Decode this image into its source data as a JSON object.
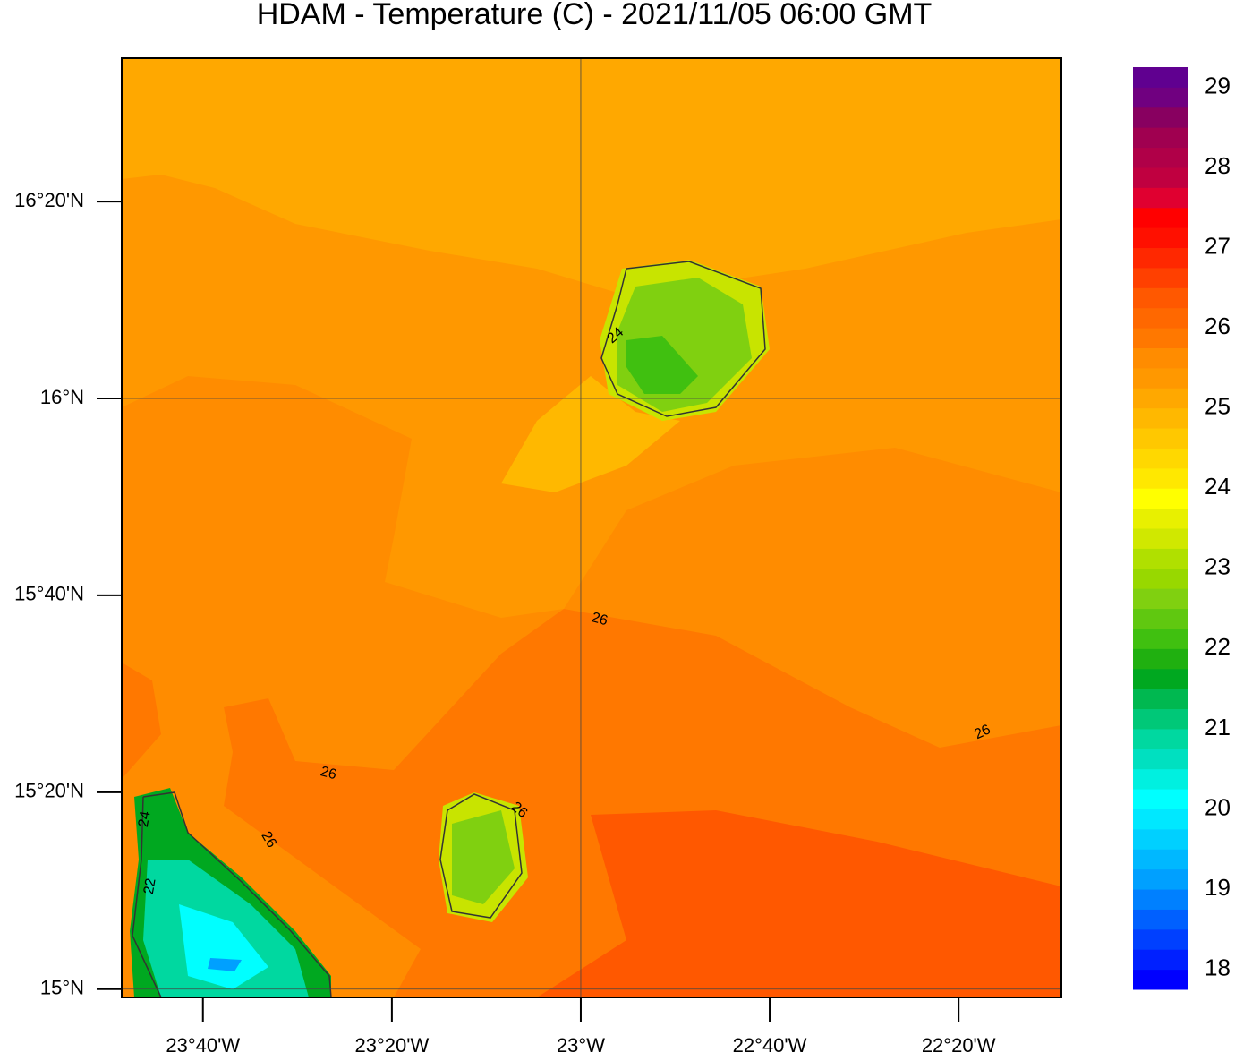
{
  "chart_data": {
    "type": "map",
    "title": "HDAM - Temperature (C)  -  2021/11/05  06:00 GMT",
    "xlim": [
      -23.81,
      -22.152
    ],
    "ylim": [
      14.986,
      16.576
    ],
    "xticks": [
      {
        "value": -23.6667,
        "label": "23°40'W"
      },
      {
        "value": -23.3333,
        "label": "23°20'W"
      },
      {
        "value": -23,
        "label": "23°W"
      },
      {
        "value": -22.6667,
        "label": "22°40'W"
      },
      {
        "value": -22.3333,
        "label": "22°20'W"
      }
    ],
    "yticks": [
      {
        "value": 15,
        "label": "15°N"
      },
      {
        "value": 15.3333,
        "label": "15°20'N"
      },
      {
        "value": 15.6667,
        "label": "15°40'N"
      },
      {
        "value": 16,
        "label": "16°N"
      },
      {
        "value": 16.3333,
        "label": "16°20'N"
      }
    ],
    "lon_grid": [
      -23
    ],
    "lat_grid": [
      15,
      16
    ],
    "contour_labels": [
      "26",
      "26",
      "26",
      "26",
      "24",
      "26",
      "24",
      "22"
    ],
    "colorbar": {
      "range": [
        17.75,
        29.25
      ],
      "ticks": [
        18,
        19,
        20,
        21,
        22,
        23,
        24,
        25,
        26,
        27,
        28,
        29
      ],
      "colors": [
        "#0000ff",
        "#0020ff",
        "#0040ff",
        "#0060ff",
        "#0080ff",
        "#00a0ff",
        "#00b8ff",
        "#00d0ff",
        "#00e8ff",
        "#00ffff",
        "#00f0e0",
        "#00e0c0",
        "#00d8a0",
        "#00c878",
        "#00b850",
        "#00a820",
        "#20b010",
        "#40c010",
        "#60c810",
        "#80d010",
        "#98d800",
        "#b0e000",
        "#d0e800",
        "#e8f000",
        "#ffff00",
        "#ffe800",
        "#ffd800",
        "#ffc800",
        "#ffb800",
        "#ffa800",
        "#ff9800",
        "#ff8c00",
        "#ff7800",
        "#ff6800",
        "#ff5800",
        "#ff4000",
        "#ff2800",
        "#ff1000",
        "#ff0000",
        "#e00030",
        "#c00040",
        "#b00048",
        "#a00050",
        "#880060",
        "#700080",
        "#600090"
      ]
    }
  }
}
